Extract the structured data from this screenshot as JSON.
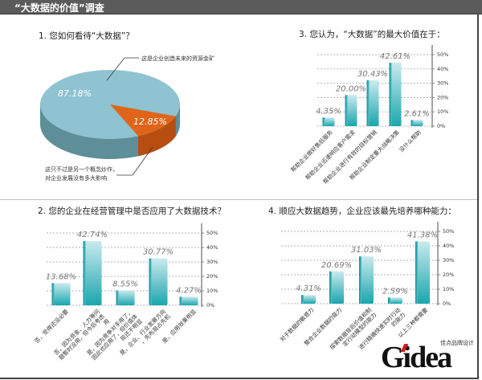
{
  "header": {
    "title": "“大数据的价值”调查"
  },
  "colors": {
    "pie_main": "#8fc3d1",
    "pie_main_side": "#5e8e98",
    "pie_minor": "#e0651a",
    "pie_minor_side": "#b84d10",
    "bar_top": "#c9eaee",
    "bar_bottom": "#1aa6ae",
    "header_bg": "#5b5b5b"
  },
  "logo": {
    "text": "Gidea",
    "sub": "佳点品牌设计"
  },
  "chart_data": [
    {
      "type": "pie",
      "title": "1. 您如何看待“大数据”？",
      "slices": [
        {
          "label": "这是企业创造未来的资源金矿",
          "value": 87.18,
          "value_label": "87.18%"
        },
        {
          "label": "这只不过是另一个概念炒作，对企业发展没有多大影响",
          "value": 12.85,
          "value_label": "12.85%"
        }
      ],
      "label_lines": [
        "这只不过是另一个概念炒作，",
        "对企业发展没有多大影响"
      ]
    },
    {
      "type": "bar",
      "title": "3. 您认为，“大数据”的最大价值在于：",
      "categories": [
        "帮助企业做好售后服务",
        "帮助企业迅速响应客户需求",
        "帮助企业进行有效的目标营销",
        "帮助企业制定重大战略决策",
        "没什么帮助"
      ],
      "values": [
        4.35,
        20.0,
        30.43,
        42.61,
        2.61
      ],
      "value_labels": [
        "4.35%",
        "20.00%",
        "30.43%",
        "42.61%",
        "2.61%"
      ],
      "ylim": [
        0,
        50
      ],
      "yticks": [
        "0%",
        "10%",
        "20%",
        "30%",
        "40%",
        "50%"
      ],
      "grid": true,
      "axis": "right"
    },
    {
      "type": "bar",
      "title": "2. 您的企业在经营管理中是否应用了大数据技术？",
      "categories": [
        "否，觉得还没必要",
        "否，因为资金、人力等问题暂时没用，但今后考虑用",
        "是，因为竞争对手用了，因此也应用了，但价值体现还不明显",
        "是，企业、行业发展方向，先布局占先机",
        "是，应用效果明显"
      ],
      "values": [
        13.68,
        42.74,
        8.55,
        30.77,
        4.27
      ],
      "value_labels": [
        "13.68%",
        "42.74%",
        "8.55%",
        "30.77%",
        "4.27%"
      ],
      "ylim": [
        0,
        50
      ],
      "yticks": [
        "0%",
        "10%",
        "20%",
        "30%",
        "40%",
        "50%"
      ],
      "grid": true,
      "axis": "right"
    },
    {
      "type": "bar",
      "title": "4. 顺应大数据趋势，企业应该最先培养哪种能力：",
      "categories": [
        "对于数据的敏感力",
        "整合企业数据的能力",
        "探索数据背后价值和制定行动模型的能力",
        "进行精确快速实时行动的能力",
        "以上三种都需要"
      ],
      "values": [
        4.31,
        20.69,
        31.03,
        2.59,
        41.38
      ],
      "value_labels": [
        "4.31%",
        "20.69%",
        "31.03%",
        "2.59%",
        "41.38%"
      ],
      "ylim": [
        0,
        50
      ],
      "yticks": [
        "0%",
        "10%",
        "20%",
        "30%",
        "40%",
        "50%"
      ],
      "grid": true,
      "axis": "right"
    }
  ]
}
